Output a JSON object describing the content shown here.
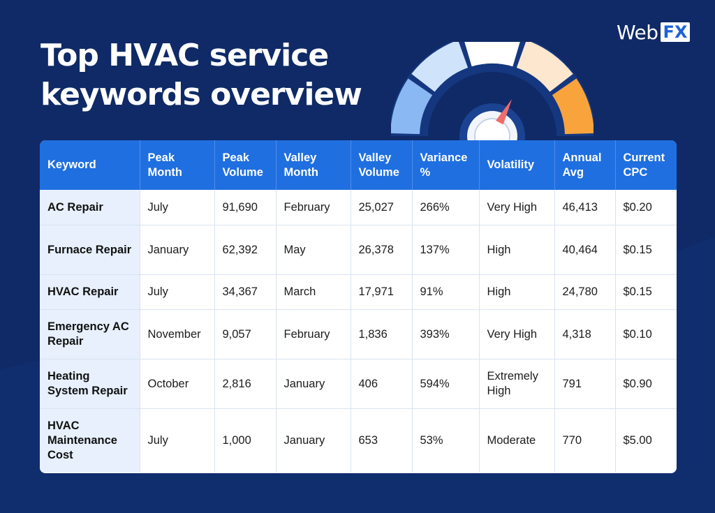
{
  "title": "Top HVAC service keywords overview",
  "logo": {
    "web": "Web",
    "fx": "FX"
  },
  "colors": {
    "background": "#0f2a66",
    "header": "#1f6fe0",
    "keyword_cell": "#e7f0fc",
    "gauge_segments": [
      "#8ab8f2",
      "#cfe3fb",
      "#ffffff",
      "#fde7cf",
      "#f8a33c"
    ],
    "needle": "#f06b6b"
  },
  "icons": [
    "gauge-icon"
  ],
  "chart_data": {
    "type": "table",
    "title": "Top HVAC service keywords overview",
    "columns": [
      "Keyword",
      "Peak Month",
      "Peak Volume",
      "Valley Month",
      "Valley Volume",
      "Variance %",
      "Volatility",
      "Annual Avg",
      "Current CPC"
    ],
    "rows": [
      [
        "AC Repair",
        "July",
        "91,690",
        "February",
        "25,027",
        "266%",
        "Very High",
        "46,413",
        "$0.20"
      ],
      [
        "Furnace Repair",
        "January",
        "62,392",
        "May",
        "26,378",
        "137%",
        "High",
        "40,464",
        "$0.15"
      ],
      [
        "HVAC Repair",
        "July",
        "34,367",
        "March",
        "17,971",
        "91%",
        "High",
        "24,780",
        "$0.15"
      ],
      [
        "Emergency AC Repair",
        "November",
        "9,057",
        "February",
        "1,836",
        "393%",
        "Very High",
        "4,318",
        "$0.10"
      ],
      [
        "Heating System Repair",
        "October",
        "2,816",
        "January",
        "406",
        "594%",
        "Extremely High",
        "791",
        "$0.90"
      ],
      [
        "HVAC Maintenance Cost",
        "July",
        "1,000",
        "January",
        "653",
        "53%",
        "Moderate",
        "770",
        "$5.00"
      ]
    ]
  }
}
